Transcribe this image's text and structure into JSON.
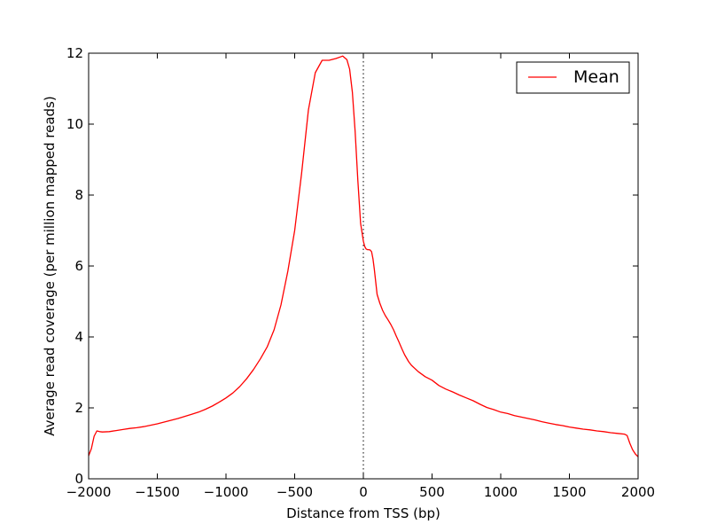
{
  "chart_data": {
    "type": "line",
    "title": "",
    "xlabel": "Distance from TSS (bp)",
    "ylabel": "Average read coverage (per million mapped reads)",
    "xlim": [
      -2000,
      2000
    ],
    "ylim": [
      0,
      12
    ],
    "xticks": [
      -2000,
      -1500,
      -1000,
      -500,
      0,
      500,
      1000,
      1500,
      2000
    ],
    "xtick_labels": [
      "−2000",
      "−1500",
      "−1000",
      "−500",
      "0",
      "500",
      "1000",
      "1500",
      "2000"
    ],
    "yticks": [
      0,
      2,
      4,
      6,
      8,
      10,
      12
    ],
    "ytick_labels": [
      "0",
      "2",
      "4",
      "6",
      "8",
      "10",
      "12"
    ],
    "grid": false,
    "legend_position": "top-right",
    "reference_line": {
      "x": 0,
      "style": "dotted",
      "color": "#000000"
    },
    "series": [
      {
        "name": "Mean",
        "color": "#ff0000",
        "x": [
          -2000,
          -1980,
          -1960,
          -1940,
          -1920,
          -1900,
          -1850,
          -1800,
          -1750,
          -1700,
          -1650,
          -1600,
          -1550,
          -1500,
          -1450,
          -1400,
          -1350,
          -1300,
          -1250,
          -1200,
          -1150,
          -1100,
          -1050,
          -1000,
          -950,
          -900,
          -850,
          -800,
          -750,
          -700,
          -650,
          -600,
          -550,
          -500,
          -450,
          -400,
          -350,
          -300,
          -250,
          -200,
          -150,
          -120,
          -100,
          -80,
          -60,
          -40,
          -20,
          0,
          10,
          20,
          30,
          40,
          50,
          60,
          70,
          80,
          90,
          100,
          120,
          140,
          160,
          180,
          200,
          220,
          240,
          260,
          280,
          300,
          330,
          350,
          400,
          450,
          500,
          550,
          600,
          650,
          700,
          750,
          800,
          850,
          900,
          950,
          1000,
          1050,
          1100,
          1150,
          1200,
          1250,
          1300,
          1350,
          1400,
          1450,
          1500,
          1550,
          1600,
          1650,
          1700,
          1750,
          1800,
          1850,
          1900,
          1920,
          1940,
          1960,
          1980,
          2000
        ],
        "y": [
          0.65,
          0.85,
          1.2,
          1.35,
          1.33,
          1.32,
          1.33,
          1.36,
          1.39,
          1.42,
          1.44,
          1.47,
          1.51,
          1.55,
          1.6,
          1.65,
          1.7,
          1.76,
          1.82,
          1.88,
          1.96,
          2.05,
          2.16,
          2.28,
          2.42,
          2.6,
          2.82,
          3.08,
          3.38,
          3.72,
          4.2,
          4.9,
          5.85,
          7.0,
          8.6,
          10.4,
          11.45,
          11.8,
          11.8,
          11.85,
          11.92,
          11.82,
          11.55,
          10.9,
          9.8,
          8.4,
          7.2,
          6.7,
          6.55,
          6.48,
          6.46,
          6.46,
          6.45,
          6.4,
          6.2,
          5.9,
          5.55,
          5.2,
          4.95,
          4.75,
          4.6,
          4.48,
          4.35,
          4.2,
          4.02,
          3.85,
          3.67,
          3.5,
          3.3,
          3.2,
          3.02,
          2.88,
          2.78,
          2.63,
          2.53,
          2.45,
          2.36,
          2.28,
          2.2,
          2.1,
          2.01,
          1.95,
          1.88,
          1.84,
          1.78,
          1.74,
          1.7,
          1.66,
          1.61,
          1.57,
          1.53,
          1.5,
          1.46,
          1.43,
          1.4,
          1.38,
          1.35,
          1.33,
          1.3,
          1.28,
          1.26,
          1.22,
          1.0,
          0.82,
          0.7,
          0.62
        ]
      }
    ]
  }
}
